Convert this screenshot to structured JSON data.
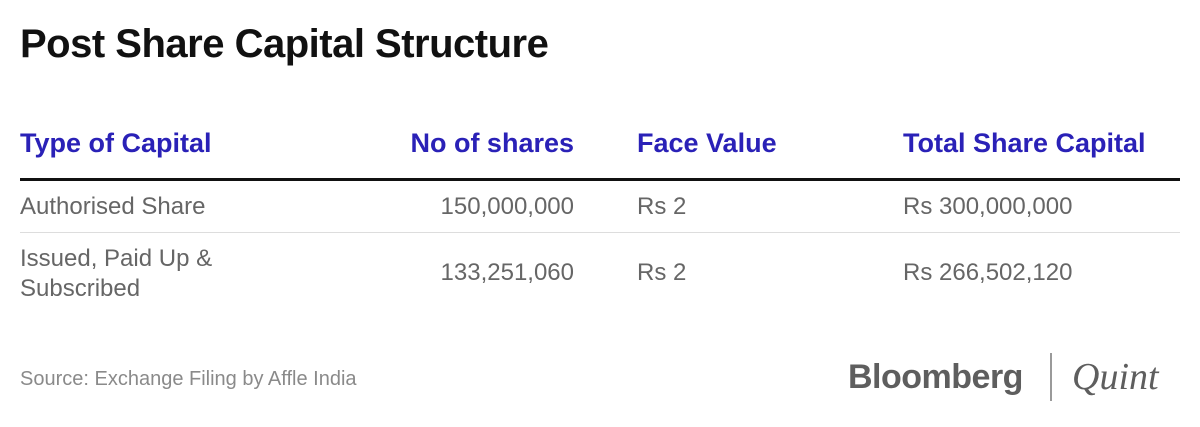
{
  "title": "Post Share Capital Structure",
  "chart_data": {
    "type": "table",
    "title": "Post Share Capital Structure",
    "columns": [
      "Type of Capital",
      "No of shares",
      "Face Value",
      "Total Share Capital"
    ],
    "rows": [
      [
        "Authorised Share",
        "150,000,000",
        "Rs 2",
        "Rs 300,000,000"
      ],
      [
        "Issued, Paid Up & Subscribed",
        "133,251,060",
        "Rs 2",
        "Rs 266,502,120"
      ]
    ],
    "header_color": "#2a21b7"
  },
  "source": "Source: Exchange Filing by Affle India",
  "logo": {
    "brand_left": "Bloomberg",
    "brand_right": "Quint"
  }
}
